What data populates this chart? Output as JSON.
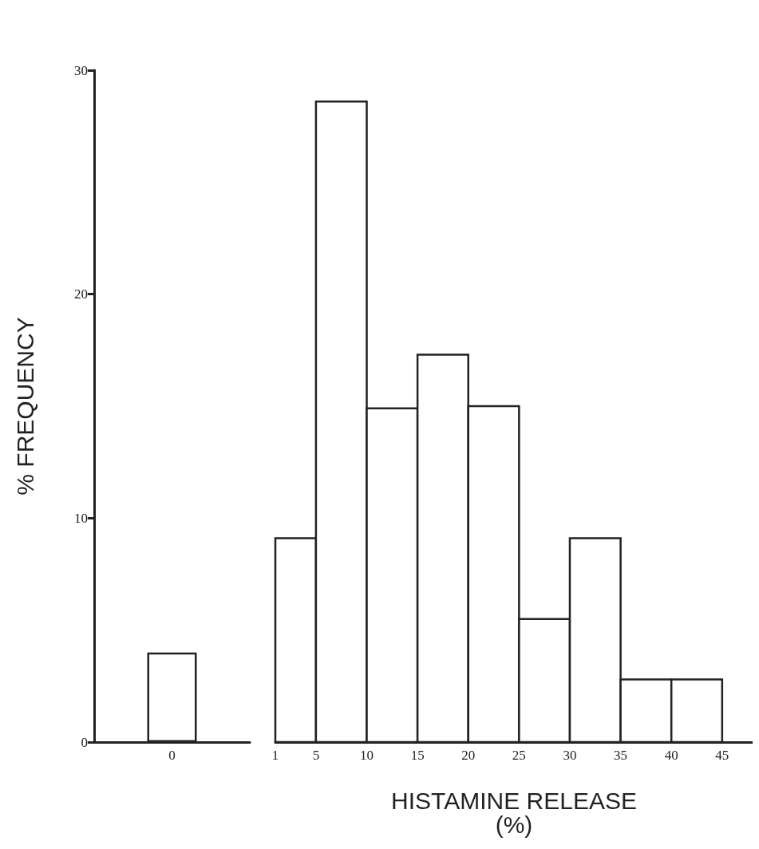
{
  "chart_data": [
    {
      "type": "bar",
      "ylabel": "% FREQUENCY",
      "categories": [
        "0"
      ],
      "values": [
        4.0
      ],
      "ylim": [
        0,
        30
      ],
      "yticks": [
        0,
        10,
        20,
        30
      ],
      "grid": false
    },
    {
      "type": "histogram",
      "xlabel": "HISTAMINE RELEASE\n(%)",
      "bins": [
        1,
        5,
        10,
        15,
        20,
        25,
        30,
        35,
        40,
        45
      ],
      "values": [
        9.1,
        28.6,
        14.9,
        17.3,
        15.0,
        5.5,
        9.1,
        2.8,
        2.8
      ],
      "xlim": [
        1,
        48
      ],
      "xticks": [
        1,
        5,
        10,
        15,
        20,
        25,
        30,
        35,
        40,
        45
      ],
      "ylim": [
        0,
        30
      ],
      "yticks": [
        0,
        10,
        20,
        30
      ],
      "tick_labels": "x",
      "grid": false
    }
  ]
}
